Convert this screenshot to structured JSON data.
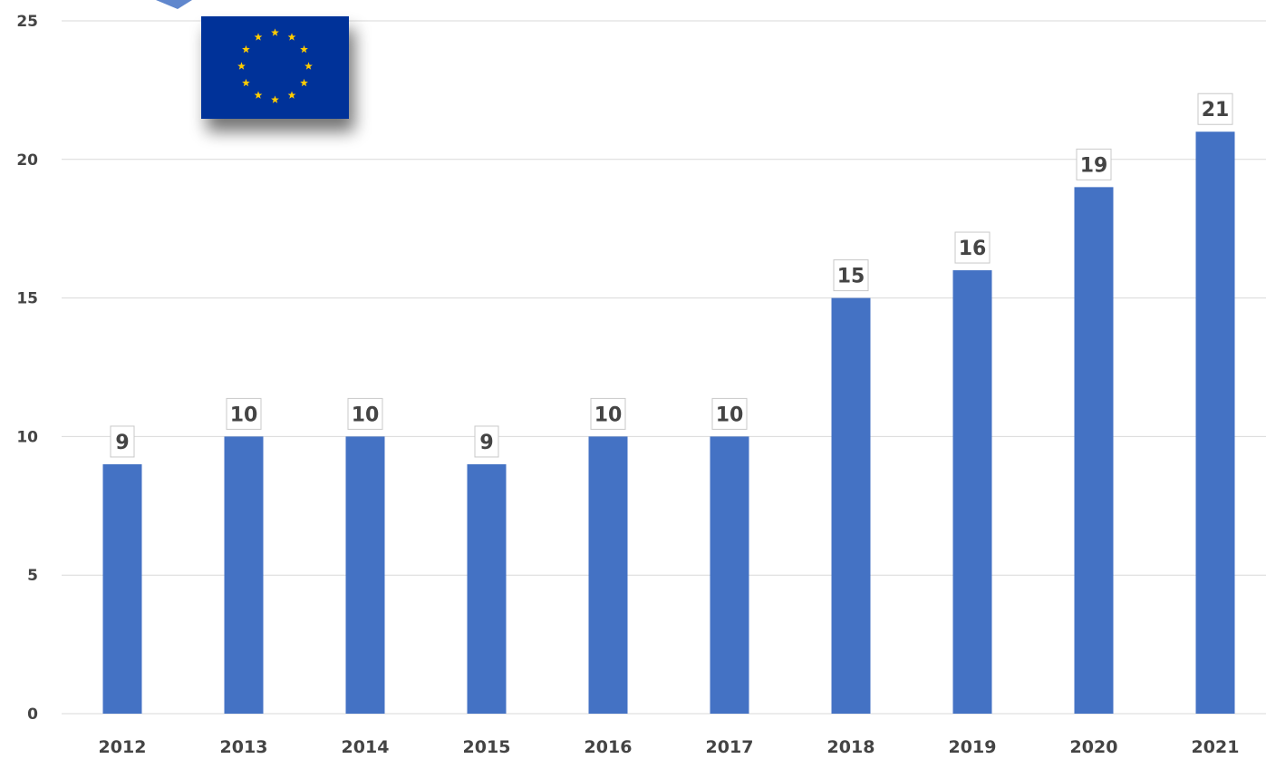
{
  "chart_data": {
    "type": "bar",
    "title": "",
    "xlabel": "",
    "ylabel": "",
    "categories": [
      "2012",
      "2013",
      "2014",
      "2015",
      "2016",
      "2017",
      "2018",
      "2019",
      "2020",
      "2021"
    ],
    "values": [
      9,
      10,
      10,
      9,
      10,
      10,
      15,
      16,
      19,
      21
    ],
    "ylim": [
      0,
      25
    ],
    "yticks": [
      0,
      5,
      10,
      15,
      20,
      25
    ],
    "grid": true,
    "legend": "none",
    "data_labels": true,
    "bar_color": "#4472c4",
    "grid_color": "#d9d9d9",
    "label_color": "#444444",
    "decoration": {
      "flag": "european-union-flag",
      "flag_color": "#003399",
      "star_color": "#ffcc00"
    }
  }
}
